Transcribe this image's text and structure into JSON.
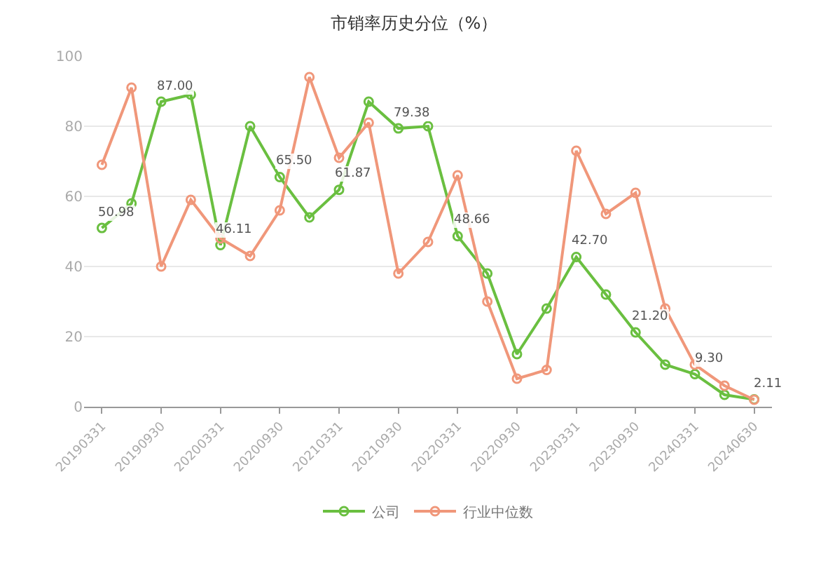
{
  "chart_data": {
    "type": "line",
    "title": "市销率历史分位（%）",
    "categories": [
      "20190331",
      null,
      "20190930",
      null,
      "20200331",
      null,
      "20200930",
      null,
      "20210331",
      null,
      "20210930",
      null,
      "20220331",
      null,
      "20220930",
      null,
      "20230331",
      null,
      "20230930",
      null,
      "20240331",
      null,
      "20240630"
    ],
    "series": [
      {
        "name": "公司",
        "color": "#6abf40",
        "values": [
          50.98,
          58,
          87.0,
          89,
          46.11,
          80,
          65.5,
          54,
          61.87,
          87,
          79.38,
          80,
          48.66,
          38,
          15,
          28,
          42.7,
          32,
          21.2,
          12,
          9.3,
          3.4,
          2.11
        ],
        "value_labels": [
          "50.98",
          null,
          "87.00",
          null,
          "46.11",
          null,
          "65.50",
          null,
          "61.87",
          null,
          "79.38",
          null,
          "48.66",
          null,
          null,
          null,
          "42.70",
          null,
          "21.20",
          null,
          "9.30",
          null,
          "2.11"
        ]
      },
      {
        "name": "行业中位数",
        "color": "#f0977a",
        "values": [
          69,
          91,
          40,
          59,
          48,
          43,
          56,
          94,
          71,
          81,
          38,
          47,
          66,
          30,
          8,
          10.5,
          73,
          55,
          61,
          28,
          12,
          6,
          2
        ]
      }
    ],
    "ylim": [
      0,
      100
    ],
    "yticks": [
      0,
      20,
      40,
      60,
      80,
      100
    ],
    "grid": "y",
    "legend": "bottom",
    "marker": "circle",
    "line_style": "solid"
  }
}
